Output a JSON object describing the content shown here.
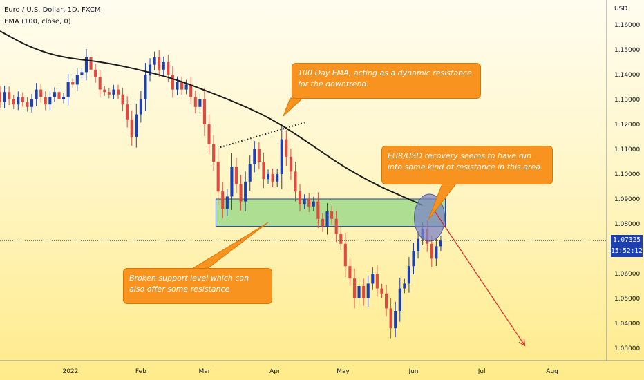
{
  "header": {
    "symbol": "Euro / U.S. Dollar, 1D, FXCM",
    "indicator": "EMA (100, close, 0)"
  },
  "price_axis": {
    "currency": "USD",
    "last_price": "1.07325",
    "countdown": "15:52:12"
  },
  "annotations": {
    "ema_note": "100 Day EMA, acting as a dynamic resistance for the downtrend.",
    "recovery_note": "EUR/USD recovery seems to have run into some kind of resistance in this area.",
    "support_note": "Broken support level which can also offer some resistance"
  },
  "colors": {
    "up": "#1e3fae",
    "down": "#e0493f",
    "ema": "#1a1a1a",
    "zone_fill": "#9fd98a",
    "zone_border": "#1e3fae",
    "circle_fill": "#7b86c6",
    "arrow": "#e02020",
    "note_bg": "#f7931e"
  },
  "chart_data": {
    "type": "candlestick",
    "ylim": [
      1.025,
      1.17
    ],
    "y_ticks": [
      "1.03000",
      "1.04000",
      "1.05000",
      "1.06000",
      "1.07000",
      "1.08000",
      "1.09000",
      "1.10000",
      "1.11000",
      "1.12000",
      "1.13000",
      "1.14000",
      "1.15000",
      "1.16000"
    ],
    "y_tick_values": [
      1.03,
      1.04,
      1.05,
      1.06,
      1.07,
      1.08,
      1.09,
      1.1,
      1.11,
      1.12,
      1.13,
      1.14,
      1.15,
      1.16
    ],
    "x_ticks": [
      "2022",
      "Feb",
      "Mar",
      "Apr",
      "May",
      "Jun",
      "Jul",
      "Aug"
    ],
    "x_tick_days": [
      0,
      31,
      59,
      90,
      120,
      151,
      181,
      212
    ],
    "x_day_range": [
      -31,
      236
    ],
    "resistance_zone": [
      1.079,
      1.09
    ],
    "current_price": 1.07325,
    "ema_100": [
      {
        "d": -31,
        "v": 1.1575
      },
      {
        "d": -20,
        "v": 1.152
      },
      {
        "d": -10,
        "v": 1.1485
      },
      {
        "d": 0,
        "v": 1.1465
      },
      {
        "d": 10,
        "v": 1.1455
      },
      {
        "d": 20,
        "v": 1.144
      },
      {
        "d": 31,
        "v": 1.1418
      },
      {
        "d": 45,
        "v": 1.1385
      },
      {
        "d": 59,
        "v": 1.1338
      },
      {
        "d": 75,
        "v": 1.128
      },
      {
        "d": 90,
        "v": 1.1215
      },
      {
        "d": 105,
        "v": 1.1125
      },
      {
        "d": 120,
        "v": 1.103
      },
      {
        "d": 135,
        "v": 1.0955
      },
      {
        "d": 145,
        "v": 1.0915
      },
      {
        "d": 155,
        "v": 1.0875
      }
    ],
    "candles": [
      {
        "d": -31,
        "o": 1.133,
        "c": 1.129
      },
      {
        "d": -29,
        "o": 1.129,
        "c": 1.133
      },
      {
        "d": -27,
        "o": 1.133,
        "c": 1.13
      },
      {
        "d": -25,
        "o": 1.13,
        "c": 1.128
      },
      {
        "d": -23,
        "o": 1.128,
        "c": 1.131
      },
      {
        "d": -21,
        "o": 1.131,
        "c": 1.129
      },
      {
        "d": -19,
        "o": 1.129,
        "c": 1.127
      },
      {
        "d": -17,
        "o": 1.127,
        "c": 1.13
      },
      {
        "d": -15,
        "o": 1.13,
        "c": 1.134
      },
      {
        "d": -13,
        "o": 1.134,
        "c": 1.131
      },
      {
        "d": -11,
        "o": 1.131,
        "c": 1.128
      },
      {
        "d": -9,
        "o": 1.128,
        "c": 1.131
      },
      {
        "d": -7,
        "o": 1.131,
        "c": 1.133
      },
      {
        "d": -5,
        "o": 1.133,
        "c": 1.13
      },
      {
        "d": -3,
        "o": 1.13,
        "c": 1.131
      },
      {
        "d": -1,
        "o": 1.131,
        "c": 1.137
      },
      {
        "d": 1,
        "o": 1.137,
        "c": 1.136
      },
      {
        "d": 3,
        "o": 1.136,
        "c": 1.14
      },
      {
        "d": 5,
        "o": 1.14,
        "c": 1.141
      },
      {
        "d": 7,
        "o": 1.141,
        "c": 1.147
      },
      {
        "d": 9,
        "o": 1.147,
        "c": 1.142
      },
      {
        "d": 11,
        "o": 1.142,
        "c": 1.139
      },
      {
        "d": 13,
        "o": 1.139,
        "c": 1.134
      },
      {
        "d": 15,
        "o": 1.134,
        "c": 1.133
      },
      {
        "d": 17,
        "o": 1.133,
        "c": 1.132
      },
      {
        "d": 19,
        "o": 1.132,
        "c": 1.134
      },
      {
        "d": 21,
        "o": 1.134,
        "c": 1.132
      },
      {
        "d": 23,
        "o": 1.132,
        "c": 1.128
      },
      {
        "d": 25,
        "o": 1.128,
        "c": 1.122
      },
      {
        "d": 27,
        "o": 1.122,
        "c": 1.115
      },
      {
        "d": 29,
        "o": 1.115,
        "c": 1.124
      },
      {
        "d": 31,
        "o": 1.124,
        "c": 1.13
      },
      {
        "d": 33,
        "o": 1.13,
        "c": 1.14
      },
      {
        "d": 35,
        "o": 1.14,
        "c": 1.144
      },
      {
        "d": 37,
        "o": 1.144,
        "c": 1.147
      },
      {
        "d": 39,
        "o": 1.147,
        "c": 1.142
      },
      {
        "d": 41,
        "o": 1.142,
        "c": 1.145
      },
      {
        "d": 43,
        "o": 1.145,
        "c": 1.14
      },
      {
        "d": 45,
        "o": 1.14,
        "c": 1.134
      },
      {
        "d": 47,
        "o": 1.134,
        "c": 1.137
      },
      {
        "d": 49,
        "o": 1.137,
        "c": 1.134
      },
      {
        "d": 51,
        "o": 1.134,
        "c": 1.136
      },
      {
        "d": 53,
        "o": 1.136,
        "c": 1.131
      },
      {
        "d": 55,
        "o": 1.131,
        "c": 1.127
      },
      {
        "d": 57,
        "o": 1.127,
        "c": 1.13
      },
      {
        "d": 59,
        "o": 1.13,
        "c": 1.12
      },
      {
        "d": 61,
        "o": 1.12,
        "c": 1.112
      },
      {
        "d": 63,
        "o": 1.112,
        "c": 1.105
      },
      {
        "d": 65,
        "o": 1.105,
        "c": 1.093
      },
      {
        "d": 67,
        "o": 1.093,
        "c": 1.086
      },
      {
        "d": 69,
        "o": 1.086,
        "c": 1.091
      },
      {
        "d": 71,
        "o": 1.091,
        "c": 1.103
      },
      {
        "d": 73,
        "o": 1.103,
        "c": 1.096
      },
      {
        "d": 75,
        "o": 1.096,
        "c": 1.089
      },
      {
        "d": 77,
        "o": 1.089,
        "c": 1.097
      },
      {
        "d": 79,
        "o": 1.097,
        "c": 1.104
      },
      {
        "d": 81,
        "o": 1.104,
        "c": 1.11
      },
      {
        "d": 83,
        "o": 1.11,
        "c": 1.105
      },
      {
        "d": 85,
        "o": 1.105,
        "c": 1.098
      },
      {
        "d": 87,
        "o": 1.098,
        "c": 1.1
      },
      {
        "d": 89,
        "o": 1.1,
        "c": 1.097
      },
      {
        "d": 91,
        "o": 1.097,
        "c": 1.1
      },
      {
        "d": 93,
        "o": 1.1,
        "c": 1.114
      },
      {
        "d": 95,
        "o": 1.114,
        "c": 1.107
      },
      {
        "d": 97,
        "o": 1.107,
        "c": 1.101
      },
      {
        "d": 99,
        "o": 1.101,
        "c": 1.093
      },
      {
        "d": 101,
        "o": 1.093,
        "c": 1.088
      },
      {
        "d": 103,
        "o": 1.088,
        "c": 1.09
      },
      {
        "d": 105,
        "o": 1.09,
        "c": 1.087
      },
      {
        "d": 107,
        "o": 1.087,
        "c": 1.089
      },
      {
        "d": 109,
        "o": 1.089,
        "c": 1.082
      },
      {
        "d": 111,
        "o": 1.082,
        "c": 1.079
      },
      {
        "d": 113,
        "o": 1.079,
        "c": 1.085
      },
      {
        "d": 115,
        "o": 1.085,
        "c": 1.082
      },
      {
        "d": 117,
        "o": 1.082,
        "c": 1.076
      },
      {
        "d": 119,
        "o": 1.076,
        "c": 1.072
      },
      {
        "d": 121,
        "o": 1.072,
        "c": 1.063
      },
      {
        "d": 123,
        "o": 1.063,
        "c": 1.058
      },
      {
        "d": 125,
        "o": 1.058,
        "c": 1.05
      },
      {
        "d": 127,
        "o": 1.05,
        "c": 1.055
      },
      {
        "d": 129,
        "o": 1.055,
        "c": 1.05
      },
      {
        "d": 131,
        "o": 1.05,
        "c": 1.056
      },
      {
        "d": 133,
        "o": 1.056,
        "c": 1.06
      },
      {
        "d": 135,
        "o": 1.06,
        "c": 1.054
      },
      {
        "d": 137,
        "o": 1.054,
        "c": 1.052
      },
      {
        "d": 139,
        "o": 1.052,
        "c": 1.046
      },
      {
        "d": 141,
        "o": 1.046,
        "c": 1.038
      },
      {
        "d": 143,
        "o": 1.038,
        "c": 1.045
      },
      {
        "d": 145,
        "o": 1.045,
        "c": 1.054
      },
      {
        "d": 147,
        "o": 1.054,
        "c": 1.056
      },
      {
        "d": 149,
        "o": 1.056,
        "c": 1.063
      },
      {
        "d": 151,
        "o": 1.063,
        "c": 1.069
      },
      {
        "d": 153,
        "o": 1.069,
        "c": 1.074
      },
      {
        "d": 155,
        "o": 1.074,
        "c": 1.078
      },
      {
        "d": 157,
        "o": 1.078,
        "c": 1.072
      },
      {
        "d": 159,
        "o": 1.072,
        "c": 1.066
      },
      {
        "d": 161,
        "o": 1.066,
        "c": 1.071
      },
      {
        "d": 163,
        "o": 1.071,
        "c": 1.07325
      }
    ]
  }
}
